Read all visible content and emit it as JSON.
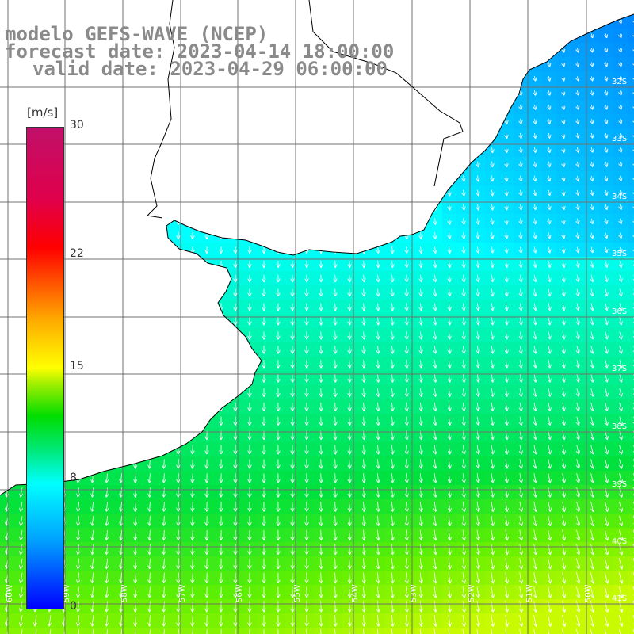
{
  "title": {
    "line1": "modelo GEFS-WAVE (NCEP)",
    "line2": "forecast date: 2023-04-14 18:00:00",
    "line3": "valid date: 2023-04-29 06:00:00"
  },
  "colorbar": {
    "unit": "[m/s]",
    "ticks": [
      {
        "value": 30,
        "label": "30"
      },
      {
        "value": 22,
        "label": "22"
      },
      {
        "value": 15,
        "label": "15"
      },
      {
        "value": 8,
        "label": "8"
      },
      {
        "value": 0,
        "label": "0"
      }
    ],
    "range": [
      0,
      30
    ],
    "colors": [
      "#0000ff",
      "#00a0ff",
      "#00ffff",
      "#00e878",
      "#00dd00",
      "#a8f000",
      "#ffff00",
      "#ffaa00",
      "#ff5000",
      "#ff0000",
      "#c0106a"
    ]
  },
  "map": {
    "variable": "wind speed",
    "arrow_color": "#ffffff",
    "land_color": "#ffffff",
    "coast_color": "#000000",
    "grid_color": "#707070",
    "lat_labels": [
      "32S",
      "33S",
      "34S",
      "35S",
      "36S",
      "37S",
      "38S",
      "39S",
      "40S",
      "41S"
    ],
    "lon_labels": [
      "60W",
      "59W",
      "58W",
      "57W",
      "56W",
      "55W",
      "54W",
      "53W",
      "52W",
      "51W",
      "50W"
    ]
  }
}
